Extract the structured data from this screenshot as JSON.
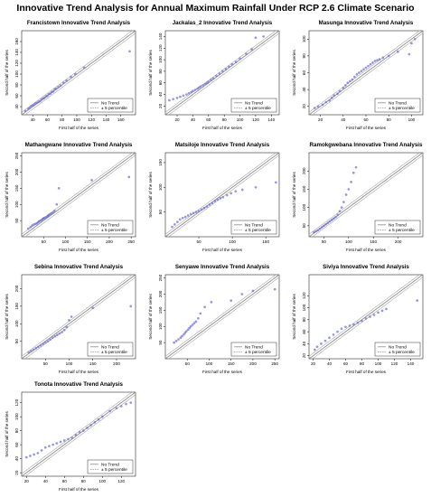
{
  "page": {
    "title": "Innovative Trend Analysis for Annual Maximum Rainfall Under RCP 2.6 Climate Scenario"
  },
  "style": {
    "point_color": "#6a6ad8",
    "trend_line_color": "#8c8c8c",
    "band_line_color": "#a8a8a8"
  },
  "chart_data": [
    {
      "type": "scatter",
      "title": "Francistown Innovative Trend Analysis",
      "xlabel": "First half of the series",
      "ylabel": "Second half of the series",
      "xlim": [
        25,
        180
      ],
      "ylim": [
        25,
        180
      ],
      "xticks": [
        40,
        60,
        80,
        100,
        120,
        140,
        160
      ],
      "yticks": [
        40,
        60,
        80,
        100,
        120,
        140,
        160
      ],
      "legend": {
        "placement": "bottom-right",
        "entries": [
          "No Trend",
          "± 5 percentile"
        ]
      },
      "points": [
        [
          30,
          32
        ],
        [
          34,
          36
        ],
        [
          36,
          38
        ],
        [
          38,
          41
        ],
        [
          40,
          42
        ],
        [
          42,
          44
        ],
        [
          44,
          46
        ],
        [
          46,
          47
        ],
        [
          48,
          49
        ],
        [
          50,
          50
        ],
        [
          52,
          53
        ],
        [
          54,
          55
        ],
        [
          56,
          56
        ],
        [
          58,
          59
        ],
        [
          60,
          60
        ],
        [
          62,
          63
        ],
        [
          64,
          64
        ],
        [
          66,
          67
        ],
        [
          68,
          68
        ],
        [
          70,
          72
        ],
        [
          72,
          73
        ],
        [
          75,
          76
        ],
        [
          78,
          79
        ],
        [
          82,
          84
        ],
        [
          86,
          88
        ],
        [
          92,
          95
        ],
        [
          98,
          100
        ],
        [
          110,
          112
        ],
        [
          172,
          142
        ]
      ]
    },
    {
      "type": "scatter",
      "title": "Jackalas_2 Innovative Trend Analysis",
      "xlabel": "First half of the series",
      "ylabel": "Second half of the series",
      "xlim": [
        5,
        150
      ],
      "ylim": [
        5,
        150
      ],
      "xticks": [
        20,
        40,
        60,
        80,
        100,
        120,
        140
      ],
      "yticks": [
        20,
        40,
        60,
        80,
        100,
        120,
        140
      ],
      "legend": {
        "placement": "bottom-right",
        "entries": [
          "No Trend",
          "± 5 percentile"
        ]
      },
      "points": [
        [
          10,
          30
        ],
        [
          15,
          32
        ],
        [
          20,
          34
        ],
        [
          24,
          36
        ],
        [
          28,
          38
        ],
        [
          32,
          40
        ],
        [
          35,
          42
        ],
        [
          38,
          44
        ],
        [
          40,
          46
        ],
        [
          43,
          48
        ],
        [
          46,
          50
        ],
        [
          48,
          52
        ],
        [
          50,
          54
        ],
        [
          53,
          56
        ],
        [
          56,
          58
        ],
        [
          58,
          60
        ],
        [
          60,
          62
        ],
        [
          63,
          65
        ],
        [
          66,
          68
        ],
        [
          70,
          72
        ],
        [
          74,
          76
        ],
        [
          78,
          80
        ],
        [
          82,
          84
        ],
        [
          86,
          88
        ],
        [
          90,
          92
        ],
        [
          95,
          96
        ],
        [
          100,
          102
        ],
        [
          108,
          110
        ],
        [
          115,
          118
        ],
        [
          120,
          138
        ],
        [
          130,
          140
        ]
      ]
    },
    {
      "type": "scatter",
      "title": "Masunga Innovative Trend Analysis",
      "xlabel": "First half of the series",
      "ylabel": "Second half of the series",
      "xlim": [
        10,
        110
      ],
      "ylim": [
        10,
        110
      ],
      "xticks": [
        20,
        40,
        60,
        80,
        100
      ],
      "yticks": [
        20,
        40,
        60,
        80,
        100
      ],
      "legend": {
        "placement": "bottom-right",
        "entries": [
          "No Trend",
          "± 5 percentile"
        ]
      },
      "points": [
        [
          15,
          18
        ],
        [
          18,
          20
        ],
        [
          22,
          22
        ],
        [
          25,
          25
        ],
        [
          28,
          27
        ],
        [
          30,
          30
        ],
        [
          32,
          33
        ],
        [
          35,
          35
        ],
        [
          37,
          38
        ],
        [
          40,
          42
        ],
        [
          42,
          45
        ],
        [
          44,
          48
        ],
        [
          46,
          50
        ],
        [
          48,
          52
        ],
        [
          50,
          55
        ],
        [
          52,
          58
        ],
        [
          54,
          60
        ],
        [
          56,
          62
        ],
        [
          58,
          64
        ],
        [
          60,
          66
        ],
        [
          62,
          68
        ],
        [
          64,
          70
        ],
        [
          66,
          72
        ],
        [
          68,
          74
        ],
        [
          70,
          75
        ],
        [
          72,
          76
        ],
        [
          75,
          78
        ],
        [
          80,
          80
        ],
        [
          88,
          85
        ],
        [
          98,
          82
        ],
        [
          100,
          95
        ],
        [
          103,
          100
        ]
      ]
    },
    {
      "type": "scatter",
      "title": "Mathangwane Innovative Trend Analysis",
      "xlabel": "First half of the series",
      "ylabel": "Second half of the series",
      "xlim": [
        0,
        260
      ],
      "ylim": [
        0,
        260
      ],
      "xticks": [
        50,
        100,
        150,
        200,
        250
      ],
      "yticks": [
        50,
        100,
        150,
        200,
        250
      ],
      "legend": {
        "placement": "bottom-right",
        "entries": [
          "No Trend",
          "± 5 percentile"
        ]
      },
      "points": [
        [
          15,
          25
        ],
        [
          20,
          30
        ],
        [
          24,
          35
        ],
        [
          28,
          38
        ],
        [
          32,
          40
        ],
        [
          35,
          42
        ],
        [
          38,
          45
        ],
        [
          40,
          48
        ],
        [
          43,
          50
        ],
        [
          46,
          52
        ],
        [
          48,
          55
        ],
        [
          50,
          57
        ],
        [
          52,
          58
        ],
        [
          55,
          60
        ],
        [
          58,
          62
        ],
        [
          60,
          65
        ],
        [
          62,
          67
        ],
        [
          65,
          70
        ],
        [
          68,
          72
        ],
        [
          72,
          75
        ],
        [
          75,
          80
        ],
        [
          80,
          100
        ],
        [
          85,
          150
        ],
        [
          160,
          175
        ],
        [
          245,
          185
        ]
      ]
    },
    {
      "type": "scatter",
      "title": "Matsiloje Innovative Trend Analysis",
      "xlabel": "First half of the series",
      "ylabel": "Second half of the series",
      "xlim": [
        0,
        170
      ],
      "ylim": [
        0,
        170
      ],
      "xticks": [
        50,
        100,
        150
      ],
      "yticks": [
        50,
        100,
        150
      ],
      "legend": {
        "placement": "bottom-right",
        "entries": [
          "No Trend",
          "± 5 percentile"
        ]
      },
      "points": [
        [
          10,
          20
        ],
        [
          14,
          25
        ],
        [
          18,
          30
        ],
        [
          22,
          35
        ],
        [
          26,
          38
        ],
        [
          30,
          40
        ],
        [
          34,
          43
        ],
        [
          38,
          46
        ],
        [
          42,
          48
        ],
        [
          46,
          50
        ],
        [
          50,
          52
        ],
        [
          54,
          55
        ],
        [
          58,
          58
        ],
        [
          62,
          61
        ],
        [
          66,
          65
        ],
        [
          70,
          68
        ],
        [
          74,
          72
        ],
        [
          78,
          75
        ],
        [
          82,
          78
        ],
        [
          86,
          80
        ],
        [
          92,
          84
        ],
        [
          98,
          88
        ],
        [
          105,
          92
        ],
        [
          115,
          95
        ],
        [
          135,
          100
        ],
        [
          165,
          110
        ]
      ]
    },
    {
      "type": "scatter",
      "title": "Ramokgwebana Innovative Trend Analysis",
      "xlabel": "First half of the series",
      "ylabel": "Second half of the series",
      "xlim": [
        20,
        250
      ],
      "ylim": [
        20,
        250
      ],
      "xticks": [
        50,
        100,
        150,
        200
      ],
      "yticks": [
        50,
        100,
        150,
        200
      ],
      "legend": {
        "placement": "bottom-right",
        "entries": [
          "No Trend",
          "± 5 percentile"
        ]
      },
      "points": [
        [
          30,
          32
        ],
        [
          34,
          35
        ],
        [
          38,
          38
        ],
        [
          42,
          42
        ],
        [
          46,
          46
        ],
        [
          50,
          50
        ],
        [
          54,
          54
        ],
        [
          58,
          58
        ],
        [
          62,
          62
        ],
        [
          66,
          66
        ],
        [
          70,
          70
        ],
        [
          74,
          74
        ],
        [
          78,
          80
        ],
        [
          82,
          90
        ],
        [
          86,
          100
        ],
        [
          90,
          115
        ],
        [
          95,
          135
        ],
        [
          100,
          150
        ],
        [
          105,
          170
        ],
        [
          110,
          195
        ],
        [
          115,
          210
        ]
      ]
    },
    {
      "type": "scatter",
      "title": "Sebina Innovative Trend Analysis",
      "xlabel": "First half of the series",
      "ylabel": "Second half of the series",
      "xlim": [
        0,
        240
      ],
      "ylim": [
        0,
        240
      ],
      "xticks": [
        50,
        100,
        150,
        200
      ],
      "yticks": [
        50,
        100,
        150,
        200
      ],
      "legend": {
        "placement": "bottom-right",
        "entries": [
          "No Trend",
          "± 5 percentile"
        ]
      },
      "points": [
        [
          15,
          18
        ],
        [
          20,
          22
        ],
        [
          25,
          26
        ],
        [
          30,
          30
        ],
        [
          35,
          34
        ],
        [
          40,
          38
        ],
        [
          45,
          42
        ],
        [
          50,
          46
        ],
        [
          55,
          50
        ],
        [
          60,
          55
        ],
        [
          65,
          60
        ],
        [
          70,
          64
        ],
        [
          75,
          68
        ],
        [
          80,
          72
        ],
        [
          85,
          76
        ],
        [
          90,
          82
        ],
        [
          95,
          90
        ],
        [
          100,
          110
        ],
        [
          105,
          120
        ],
        [
          150,
          145
        ],
        [
          230,
          150
        ]
      ]
    },
    {
      "type": "scatter",
      "title": "Senyawe Innovative Trend Analysis",
      "xlabel": "First half of the series",
      "ylabel": "Second half of the series",
      "xlim": [
        0,
        260
      ],
      "ylim": [
        0,
        260
      ],
      "xticks": [
        50,
        100,
        150,
        200,
        250
      ],
      "yticks": [
        50,
        100,
        150,
        200,
        250
      ],
      "legend": {
        "placement": "bottom-right",
        "entries": [
          "No Trend",
          "± 5 percentile"
        ]
      },
      "points": [
        [
          20,
          50
        ],
        [
          25,
          55
        ],
        [
          30,
          60
        ],
        [
          35,
          65
        ],
        [
          38,
          70
        ],
        [
          42,
          75
        ],
        [
          45,
          80
        ],
        [
          48,
          85
        ],
        [
          52,
          90
        ],
        [
          55,
          95
        ],
        [
          58,
          100
        ],
        [
          62,
          105
        ],
        [
          66,
          110
        ],
        [
          70,
          115
        ],
        [
          75,
          125
        ],
        [
          80,
          140
        ],
        [
          90,
          160
        ],
        [
          105,
          175
        ],
        [
          150,
          180
        ],
        [
          175,
          200
        ],
        [
          200,
          210
        ],
        [
          250,
          215
        ]
      ]
    },
    {
      "type": "scatter",
      "title": "Siviya Innovative Trend Analysis",
      "xlabel": "First half of the series",
      "ylabel": "Second half of the series",
      "xlim": [
        15,
        155
      ],
      "ylim": [
        15,
        155
      ],
      "xticks": [
        20,
        40,
        60,
        80,
        100,
        120,
        140
      ],
      "yticks": [
        20,
        40,
        60,
        80,
        100,
        120
      ],
      "legend": {
        "placement": "bottom-right",
        "entries": [
          "No Trend",
          "± 5 percentile"
        ]
      },
      "points": [
        [
          22,
          30
        ],
        [
          25,
          35
        ],
        [
          30,
          40
        ],
        [
          35,
          45
        ],
        [
          40,
          50
        ],
        [
          45,
          55
        ],
        [
          50,
          60
        ],
        [
          55,
          65
        ],
        [
          60,
          68
        ],
        [
          65,
          70
        ],
        [
          70,
          72
        ],
        [
          75,
          75
        ],
        [
          80,
          78
        ],
        [
          85,
          82
        ],
        [
          90,
          85
        ],
        [
          95,
          88
        ],
        [
          100,
          92
        ],
        [
          105,
          95
        ],
        [
          110,
          98
        ],
        [
          148,
          112
        ]
      ]
    },
    {
      "type": "scatter",
      "title": "Tonota Innovative Trend Analysis",
      "xlabel": "First half of the series",
      "ylabel": "Second half of the series",
      "xlim": [
        15,
        135
      ],
      "ylim": [
        15,
        135
      ],
      "xticks": [
        20,
        40,
        60,
        80,
        100,
        120
      ],
      "yticks": [
        20,
        40,
        60,
        80,
        100,
        120
      ],
      "legend": {
        "placement": "bottom-right",
        "entries": [
          "No Trend",
          "± 5 percentile"
        ]
      },
      "points": [
        [
          20,
          42
        ],
        [
          24,
          44
        ],
        [
          28,
          46
        ],
        [
          32,
          48
        ],
        [
          36,
          52
        ],
        [
          40,
          56
        ],
        [
          44,
          58
        ],
        [
          48,
          60
        ],
        [
          52,
          62
        ],
        [
          56,
          64
        ],
        [
          60,
          66
        ],
        [
          64,
          68
        ],
        [
          68,
          70
        ],
        [
          72,
          74
        ],
        [
          76,
          78
        ],
        [
          80,
          80
        ],
        [
          84,
          84
        ],
        [
          88,
          88
        ],
        [
          92,
          92
        ],
        [
          96,
          96
        ],
        [
          100,
          100
        ],
        [
          108,
          108
        ],
        [
          115,
          112
        ],
        [
          120,
          115
        ],
        [
          125,
          118
        ],
        [
          130,
          120
        ]
      ]
    }
  ]
}
